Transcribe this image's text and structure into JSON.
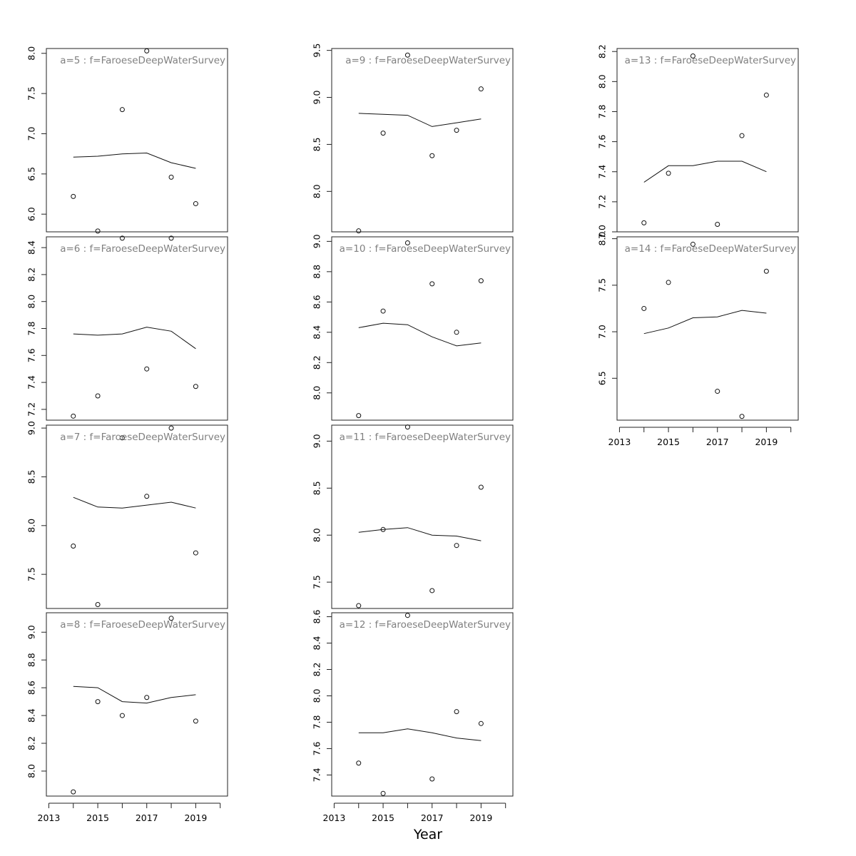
{
  "chart_data": {
    "type": "scatter",
    "xlabel": "Year",
    "x_tick_labels": [
      "2013",
      "2015",
      "2017",
      "2019"
    ],
    "x_ticks": [
      2013,
      2014,
      2015,
      2016,
      2017,
      2018,
      2019,
      2020
    ],
    "x_tick_label_years": [
      2013,
      2015,
      2017,
      2019
    ],
    "xlim": [
      2012.9,
      2020.3
    ],
    "years": [
      2014,
      2015,
      2016,
      2017,
      2018,
      2019
    ],
    "panels": [
      {
        "title": "a=5  :  f=FaroeseDeepWaterSurvey",
        "col": 0,
        "row": 0,
        "ylim": [
          5.78,
          8.06
        ],
        "yticks": [
          6.0,
          6.5,
          7.0,
          7.5,
          8.0
        ],
        "ytick_labels": [
          "6.0",
          "6.5",
          "7.0",
          "7.5",
          "8.0"
        ],
        "points": [
          6.22,
          5.79,
          7.3,
          8.03,
          6.46,
          6.13
        ],
        "fitted": [
          6.71,
          6.72,
          6.75,
          6.76,
          6.64,
          6.57
        ],
        "x_axis": false
      },
      {
        "title": "a=6  :  f=FaroeseDeepWaterSurvey",
        "col": 0,
        "row": 1,
        "ylim": [
          7.12,
          8.48
        ],
        "yticks": [
          7.2,
          7.4,
          7.6,
          7.8,
          8.0,
          8.2,
          8.4
        ],
        "ytick_labels": [
          "7.2",
          "7.4",
          "7.6",
          "7.8",
          "8.0",
          "8.2",
          "8.4"
        ],
        "points": [
          7.15,
          7.3,
          8.47,
          7.5,
          8.47,
          7.37
        ],
        "fitted": [
          7.76,
          7.75,
          7.76,
          7.81,
          7.78,
          7.65
        ],
        "x_axis": false
      },
      {
        "title": "a=7  :  f=FaroeseDeepWaterSurvey",
        "col": 0,
        "row": 2,
        "ylim": [
          7.15,
          9.03
        ],
        "yticks": [
          7.5,
          8.0,
          8.5,
          9.0
        ],
        "ytick_labels": [
          "7.5",
          "8.0",
          "8.5",
          "9.0"
        ],
        "points": [
          7.79,
          7.19,
          8.9,
          8.3,
          9.0,
          7.72
        ],
        "fitted": [
          8.29,
          8.19,
          8.18,
          8.21,
          8.24,
          8.18
        ],
        "x_axis": false
      },
      {
        "title": "a=8  :  f=FaroeseDeepWaterSurvey",
        "col": 0,
        "row": 3,
        "ylim": [
          7.82,
          9.14
        ],
        "yticks": [
          8.0,
          8.2,
          8.4,
          8.6,
          8.8,
          9.0
        ],
        "ytick_labels": [
          "8.0",
          "8.2",
          "8.4",
          "8.6",
          "8.8",
          "9.0"
        ],
        "points": [
          7.85,
          8.5,
          8.4,
          8.53,
          9.1,
          8.36
        ],
        "fitted": [
          8.61,
          8.6,
          8.5,
          8.49,
          8.53,
          8.55
        ],
        "x_axis": true
      },
      {
        "title": "a=9  :  f=FaroeseDeepWaterSurvey",
        "col": 1,
        "row": 0,
        "ylim": [
          7.57,
          9.52
        ],
        "yticks": [
          8.0,
          8.5,
          9.0,
          9.5
        ],
        "ytick_labels": [
          "8.0",
          "8.5",
          "9.0",
          "9.5"
        ],
        "points": [
          7.58,
          8.62,
          9.45,
          8.38,
          8.65,
          9.09
        ],
        "fitted": [
          8.83,
          8.82,
          8.81,
          8.69,
          8.73,
          8.77
        ],
        "x_axis": false
      },
      {
        "title": "a=10  :  f=FaroeseDeepWaterSurvey",
        "col": 1,
        "row": 1,
        "ylim": [
          7.82,
          9.03
        ],
        "yticks": [
          8.0,
          8.2,
          8.4,
          8.6,
          8.8,
          9.0
        ],
        "ytick_labels": [
          "8.0",
          "8.2",
          "8.4",
          "8.6",
          "8.8",
          "9.0"
        ],
        "points": [
          7.85,
          8.54,
          8.99,
          8.72,
          8.4,
          8.74
        ],
        "fitted": [
          8.43,
          8.46,
          8.45,
          8.37,
          8.31,
          8.33
        ],
        "x_axis": false
      },
      {
        "title": "a=11  :  f=FaroeseDeepWaterSurvey",
        "col": 1,
        "row": 2,
        "ylim": [
          7.22,
          9.17
        ],
        "yticks": [
          7.5,
          8.0,
          8.5,
          9.0
        ],
        "ytick_labels": [
          "7.5",
          "8.0",
          "8.5",
          "9.0"
        ],
        "points": [
          7.25,
          8.06,
          9.15,
          7.41,
          7.89,
          8.51
        ],
        "fitted": [
          8.03,
          8.06,
          8.08,
          8.0,
          7.99,
          7.94
        ],
        "x_axis": false
      },
      {
        "title": "a=12  :  f=FaroeseDeepWaterSurvey",
        "col": 1,
        "row": 3,
        "ylim": [
          7.24,
          8.63
        ],
        "yticks": [
          7.4,
          7.6,
          7.8,
          8.0,
          8.2,
          8.4,
          8.6
        ],
        "ytick_labels": [
          "7.4",
          "7.6",
          "7.8",
          "8.0",
          "8.2",
          "8.4",
          "8.6"
        ],
        "points": [
          7.49,
          7.26,
          8.61,
          7.37,
          7.88,
          7.79
        ],
        "fitted": [
          7.72,
          7.72,
          7.75,
          7.72,
          7.68,
          7.66
        ],
        "x_axis": true
      },
      {
        "title": "a=13  :  f=FaroeseDeepWaterSurvey",
        "col": 2,
        "row": 0,
        "ylim": [
          7.0,
          8.22
        ],
        "yticks": [
          7.0,
          7.2,
          7.4,
          7.6,
          7.8,
          8.0,
          8.2
        ],
        "ytick_labels": [
          "7.0",
          "7.2",
          "7.4",
          "7.6",
          "7.8",
          "8.0",
          "8.2"
        ],
        "points": [
          7.06,
          7.39,
          8.17,
          7.05,
          7.64,
          7.91
        ],
        "fitted": [
          7.33,
          7.44,
          7.44,
          7.47,
          7.47,
          7.4
        ],
        "x_axis": false
      },
      {
        "title": "a=14  :  f=FaroeseDeepWaterSurvey",
        "col": 2,
        "row": 1,
        "ylim": [
          6.05,
          8.02
        ],
        "yticks": [
          6.5,
          7.0,
          7.5,
          8.0
        ],
        "ytick_labels": [
          "6.5",
          "7.0",
          "7.5",
          "8.0"
        ],
        "points": [
          7.25,
          7.53,
          7.94,
          6.36,
          6.09,
          7.65
        ],
        "fitted": [
          6.98,
          7.04,
          7.15,
          7.16,
          7.23,
          7.2
        ],
        "x_axis": true
      }
    ]
  }
}
